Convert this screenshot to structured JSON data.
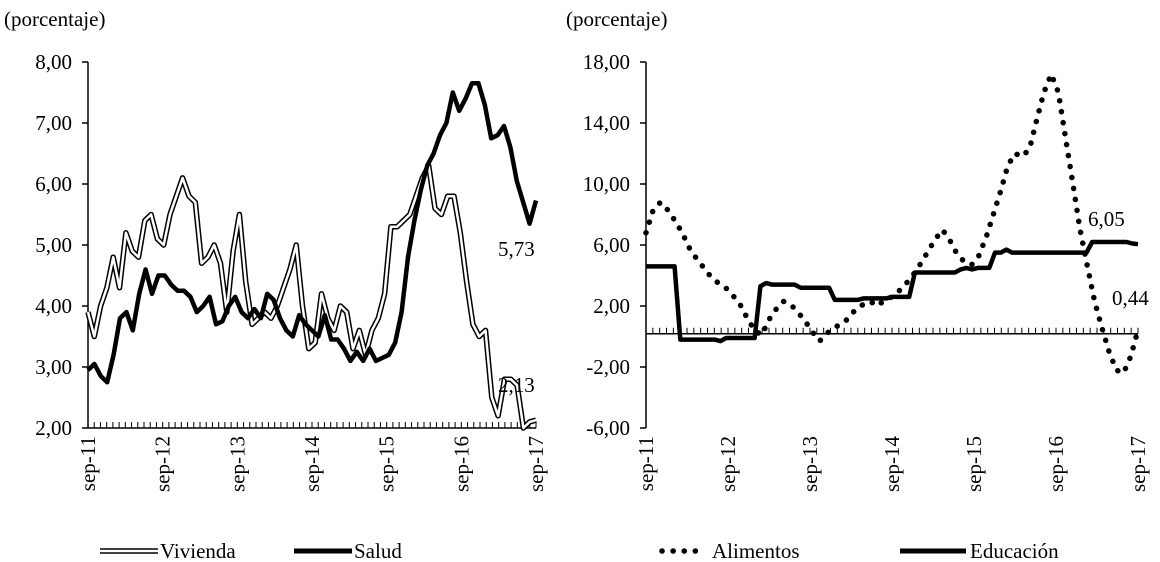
{
  "chart_data": [
    {
      "type": "line",
      "ylabel": "(porcentaje)",
      "ylim": [
        2,
        8
      ],
      "yticks": [
        "8,00",
        "7,00",
        "6,00",
        "5,00",
        "4,00",
        "3,00",
        "2,00"
      ],
      "x_tick_labels": [
        "sep-11",
        "sep-12",
        "sep-13",
        "sep-14",
        "sep-15",
        "sep-16",
        "sep-17"
      ],
      "grid": false,
      "legend_position": "bottom",
      "series": [
        {
          "name": "Vivienda",
          "style": "double-line",
          "color": "#000000",
          "values": [
            3.9,
            3.5,
            4.0,
            4.3,
            4.8,
            4.3,
            5.2,
            4.9,
            4.8,
            5.4,
            5.5,
            5.1,
            5.0,
            5.5,
            5.8,
            6.1,
            5.8,
            5.7,
            4.7,
            4.8,
            5.0,
            4.7,
            3.9,
            4.9,
            5.5,
            4.4,
            3.7,
            3.8,
            3.9,
            3.8,
            4.0,
            4.3,
            4.6,
            5.0,
            4.0,
            3.3,
            3.4,
            4.2,
            3.8,
            3.6,
            4.0,
            3.9,
            3.3,
            3.6,
            3.2,
            3.6,
            3.8,
            4.2,
            5.3,
            5.3,
            5.4,
            5.5,
            5.8,
            6.1,
            6.3,
            5.6,
            5.5,
            5.8,
            5.8,
            5.2,
            4.4,
            3.7,
            3.5,
            3.6,
            2.5,
            2.2,
            2.8,
            2.8,
            2.7,
            2.0,
            2.1,
            2.13
          ]
        },
        {
          "name": "Salud",
          "style": "thick",
          "color": "#000000",
          "values": [
            2.95,
            3.05,
            2.85,
            2.75,
            3.2,
            3.8,
            3.9,
            3.6,
            4.2,
            4.6,
            4.2,
            4.5,
            4.5,
            4.35,
            4.25,
            4.25,
            4.15,
            3.9,
            4.0,
            4.15,
            3.7,
            3.75,
            4.0,
            4.15,
            3.9,
            3.8,
            3.95,
            3.8,
            4.2,
            4.1,
            3.8,
            3.6,
            3.5,
            3.85,
            3.7,
            3.6,
            3.5,
            3.85,
            3.45,
            3.45,
            3.3,
            3.1,
            3.25,
            3.1,
            3.3,
            3.1,
            3.15,
            3.2,
            3.4,
            3.9,
            4.8,
            5.4,
            5.9,
            6.3,
            6.5,
            6.8,
            7.0,
            7.5,
            7.2,
            7.4,
            7.65,
            7.65,
            7.3,
            6.75,
            6.8,
            6.95,
            6.6,
            6.05,
            5.7,
            5.35,
            5.73
          ]
        }
      ],
      "annotations": [
        "5,73",
        "2,13"
      ]
    },
    {
      "type": "line",
      "ylabel": "(porcentaje)",
      "ylim": [
        -6,
        18
      ],
      "yticks": [
        "18,00",
        "14,00",
        "10,00",
        "6,00",
        "2,00",
        "-2,00",
        "-6,00"
      ],
      "x_tick_labels": [
        "sep-11",
        "sep-12",
        "sep-13",
        "sep-14",
        "sep-15",
        "sep-16",
        "sep-17"
      ],
      "grid": false,
      "legend_position": "bottom",
      "series": [
        {
          "name": "Alimentos",
          "style": "dotted",
          "color": "#000000",
          "values": [
            6.8,
            8.3,
            8.8,
            8.3,
            7.6,
            6.8,
            5.8,
            5.1,
            4.5,
            3.9,
            3.5,
            3.2,
            2.7,
            2.1,
            1.2,
            0.4,
            0.1,
            1.1,
            1.8,
            2.3,
            2.1,
            1.6,
            1.0,
            0.3,
            -0.3,
            0.2,
            0.6,
            0.8,
            1.2,
            1.8,
            2.1,
            2.3,
            2.0,
            2.4,
            2.6,
            3.0,
            3.5,
            4.1,
            4.8,
            5.6,
            6.4,
            7.0,
            6.3,
            5.4,
            4.9,
            4.7,
            5.3,
            6.5,
            8.0,
            9.5,
            11.2,
            12.0,
            11.8,
            12.3,
            14.2,
            16.0,
            17.2,
            16.0,
            13.0,
            10.0,
            7.0,
            4.6,
            2.3,
            0.6,
            -1.0,
            -2.2,
            -2.4,
            -1.3,
            0.44
          ]
        },
        {
          "name": "Educación",
          "style": "thick",
          "color": "#000000",
          "values": [
            4.6,
            4.6,
            4.6,
            4.6,
            4.6,
            4.6,
            -0.2,
            -0.2,
            -0.2,
            -0.2,
            -0.2,
            -0.2,
            -0.2,
            -0.3,
            -0.1,
            -0.1,
            -0.1,
            -0.1,
            -0.1,
            -0.1,
            3.3,
            3.5,
            3.4,
            3.4,
            3.4,
            3.4,
            3.4,
            3.2,
            3.2,
            3.2,
            3.2,
            3.2,
            3.2,
            2.4,
            2.4,
            2.4,
            2.4,
            2.4,
            2.5,
            2.5,
            2.5,
            2.5,
            2.5,
            2.6,
            2.6,
            2.6,
            2.6,
            4.2,
            4.2,
            4.2,
            4.2,
            4.2,
            4.2,
            4.2,
            4.2,
            4.4,
            4.5,
            4.4,
            4.5,
            4.5,
            4.5,
            5.5,
            5.5,
            5.7,
            5.5,
            5.5,
            5.5,
            5.5,
            5.5,
            5.5,
            5.5,
            5.5,
            5.5,
            5.5,
            5.5,
            5.5,
            5.5,
            5.5,
            6.2,
            6.2,
            6.2,
            6.2,
            6.2,
            6.2,
            6.2,
            6.1,
            6.05
          ]
        }
      ],
      "annotations": [
        "6,05",
        "0,44"
      ]
    }
  ]
}
